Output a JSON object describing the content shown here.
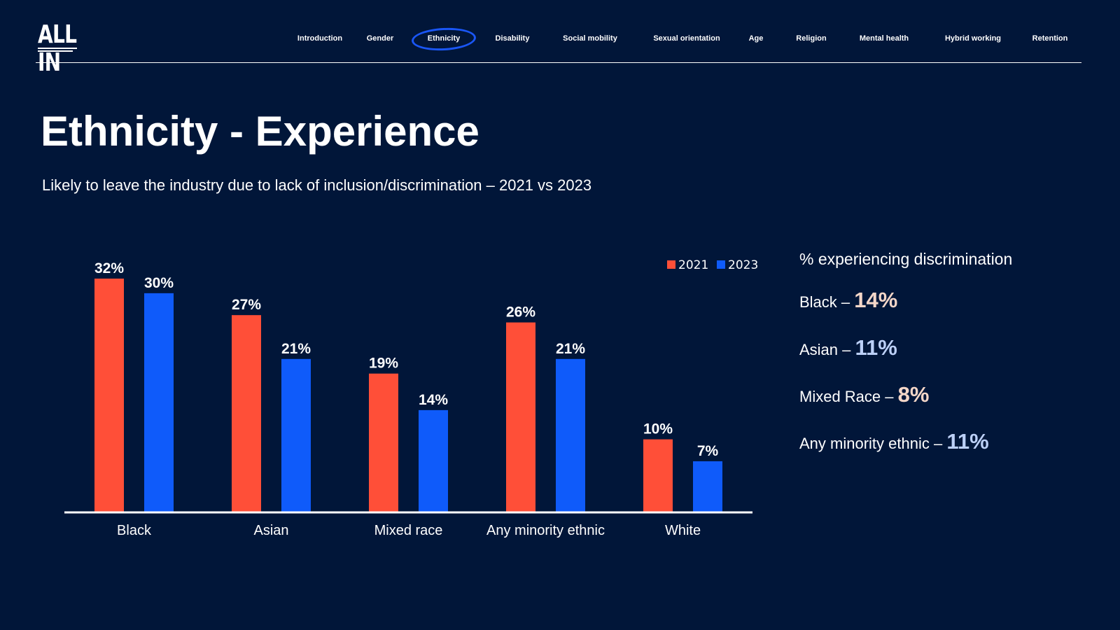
{
  "logo": {
    "text": "ALL IN"
  },
  "nav": {
    "items": [
      {
        "label": "Introduction"
      },
      {
        "label": "Gender"
      },
      {
        "label": "Ethnicity",
        "active": true
      },
      {
        "label": "Disability"
      },
      {
        "label": "Social mobility"
      },
      {
        "label": "Sexual orientation"
      },
      {
        "label": "Age"
      },
      {
        "label": "Religion"
      },
      {
        "label": "Mental health"
      },
      {
        "label": "Hybrid working"
      },
      {
        "label": "Retention"
      }
    ]
  },
  "page": {
    "title": "Ethnicity - Experience",
    "subtitle": "Likely to leave the industry due to lack of inclusion/discrimination – 2021 vs 2023"
  },
  "chart_data": {
    "type": "bar",
    "title": "Likely to leave the industry due to lack of inclusion/discrimination – 2021 vs 2023",
    "categories": [
      "Black",
      "Asian",
      "Mixed race",
      "Any minority ethnic",
      "White"
    ],
    "series": [
      {
        "name": "2021",
        "color": "#ff4f38",
        "values": [
          32,
          27,
          19,
          26,
          10
        ],
        "labels": [
          "32%",
          "27%",
          "19%",
          "26%",
          "10%"
        ]
      },
      {
        "name": "2023",
        "color": "#0f5bfa",
        "values": [
          30,
          21,
          14,
          21,
          7
        ],
        "labels": [
          "30%",
          "21%",
          "14%",
          "21%",
          "7%"
        ]
      }
    ],
    "ylim": [
      0,
      32
    ],
    "xlabel": "",
    "ylabel": "",
    "grid": false,
    "legend_position": "top-right"
  },
  "side_panel": {
    "title": "% experiencing discrimination",
    "stats": [
      {
        "label": "Black –",
        "value": "14%",
        "color": "#f4d6c8"
      },
      {
        "label": "Asian –",
        "value": "11%",
        "color": "#bcd0f7"
      },
      {
        "label": "Mixed Race –",
        "value": "8%",
        "color": "#f4d6c8"
      },
      {
        "label": "Any minority ethnic –",
        "value": "11%",
        "color": "#bcd0f7"
      }
    ]
  },
  "colors": {
    "background": "#011639",
    "accent": "#1a56f5"
  }
}
